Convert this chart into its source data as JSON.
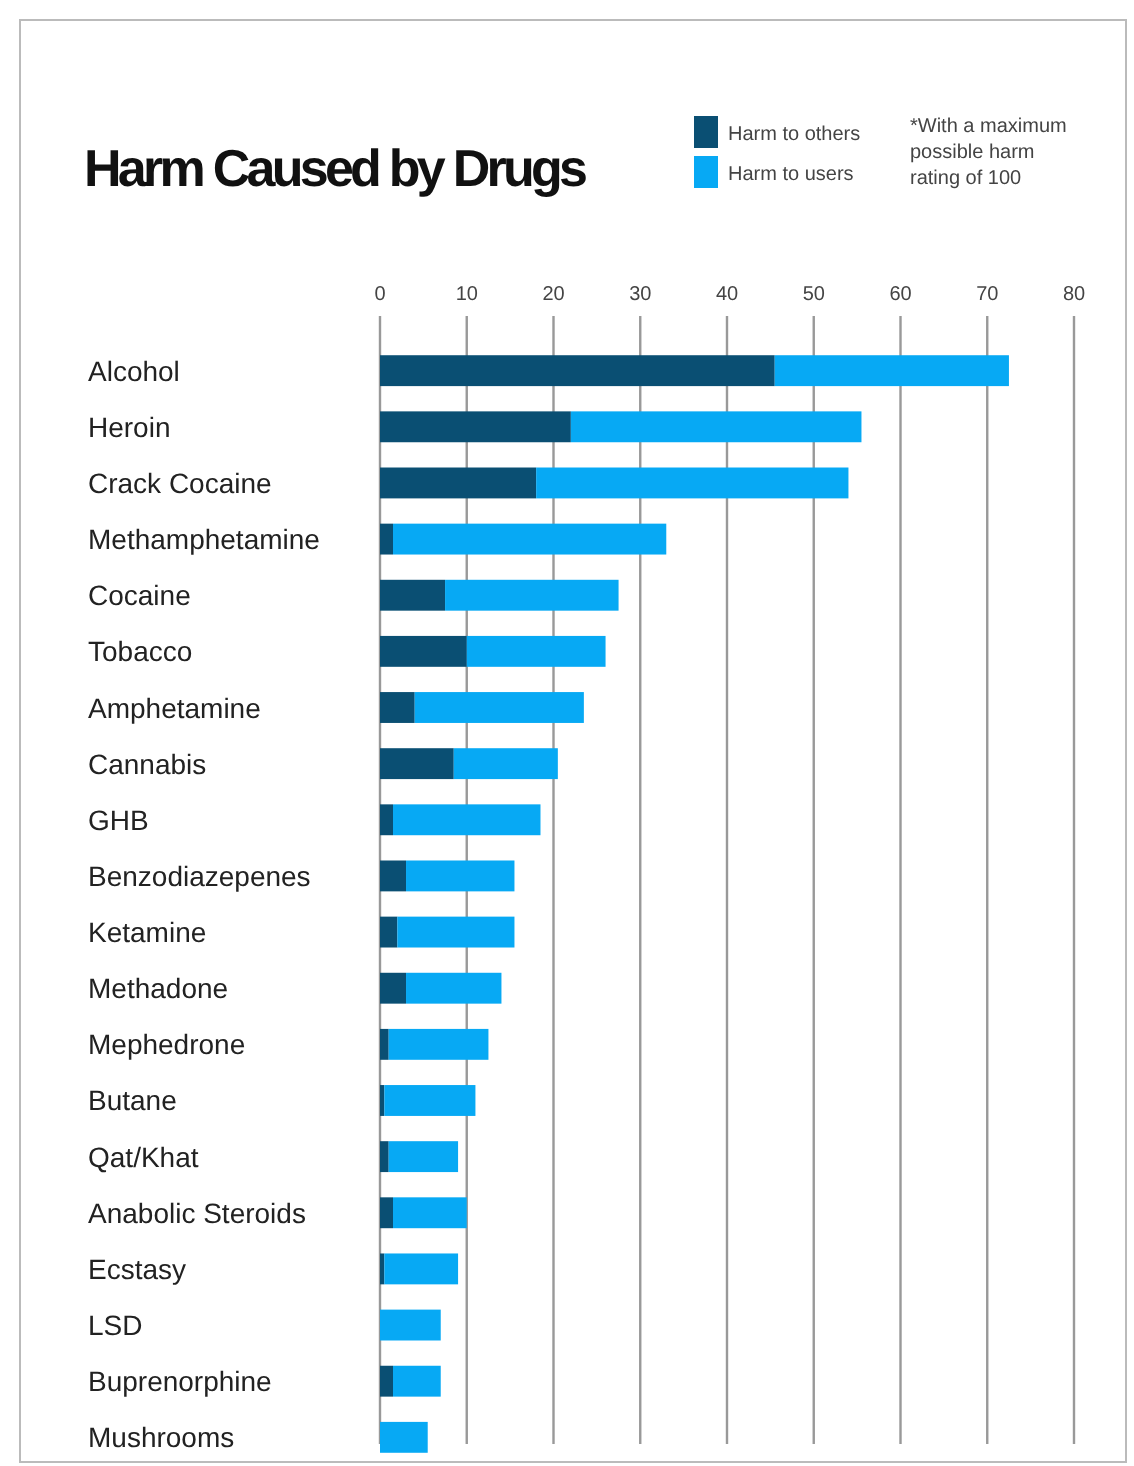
{
  "chart_data": {
    "type": "bar",
    "title": "Harm Caused by Drugs",
    "orientation": "horizontal",
    "stacked": true,
    "categories": [
      "Alcohol",
      "Heroin",
      "Crack Cocaine",
      "Methamphetamine",
      "Cocaine",
      "Tobacco",
      "Amphetamine",
      "Cannabis",
      "GHB",
      "Benzodiazepenes",
      "Ketamine",
      "Methadone",
      "Mephedrone",
      "Butane",
      "Qat/Khat",
      "Anabolic Steroids",
      "Ecstasy",
      "LSD",
      "Buprenorphine",
      "Mushrooms"
    ],
    "series": [
      {
        "name": "Harm to others",
        "color": "#0a4f73",
        "values": [
          45.5,
          22,
          18,
          1.5,
          7.5,
          10,
          4,
          8.5,
          1.5,
          3,
          2,
          3,
          1,
          0.5,
          1,
          1.5,
          0.5,
          0,
          1.5,
          0
        ]
      },
      {
        "name": "Harm to users",
        "color": "#07a9f4",
        "values": [
          27,
          33.5,
          36,
          31.5,
          20,
          16,
          19.5,
          12,
          17,
          12.5,
          13.5,
          11,
          11.5,
          10.5,
          8,
          8.5,
          8.5,
          7,
          5.5,
          5.5
        ]
      }
    ],
    "xlim": [
      0,
      80
    ],
    "xticks": [
      0,
      10,
      20,
      30,
      40,
      50,
      60,
      70,
      80
    ],
    "grid": "x",
    "legend": "top right",
    "annotations": [
      "*With a maximum possible harm rating of 100"
    ]
  }
}
